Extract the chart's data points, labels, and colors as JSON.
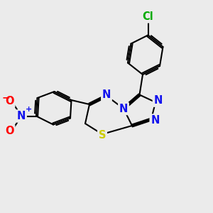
{
  "background_color": "#ebebeb",
  "bond_color": "#000000",
  "bond_width": 1.5,
  "dbo": 0.055,
  "atom_colors": {
    "N": "#1010ee",
    "S": "#cccc00",
    "O": "#ff0000",
    "Cl": "#00aa00",
    "C": "#000000"
  },
  "fs": 10.5
}
